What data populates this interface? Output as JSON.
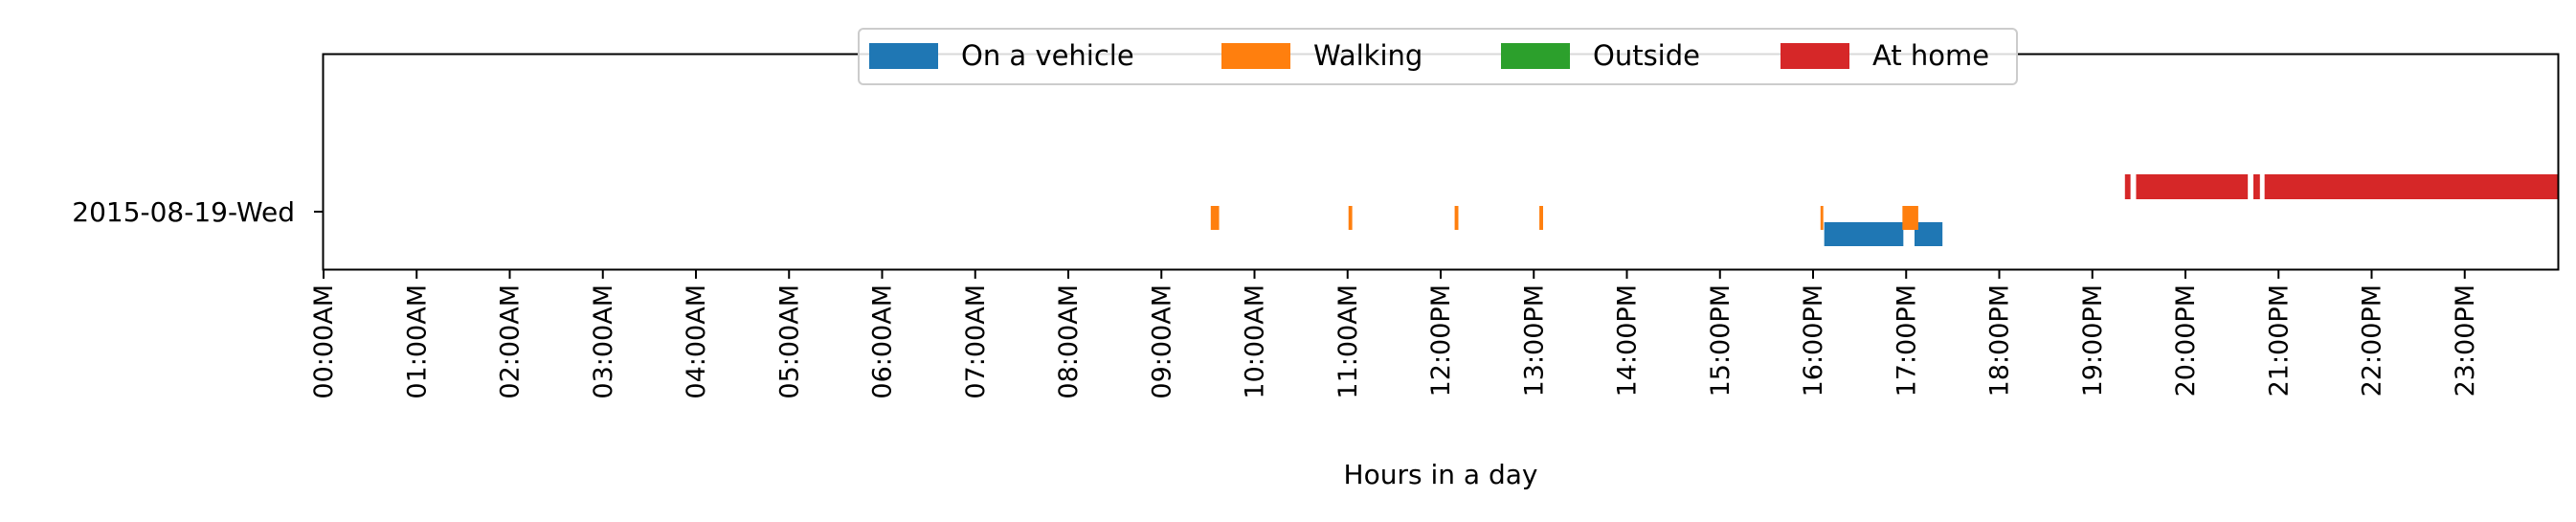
{
  "chart_data": {
    "type": "timeline",
    "xlabel": "Hours in a day",
    "xlim": [
      0,
      24
    ],
    "x_ticks": [
      {
        "value": 0,
        "label": "00:00AM"
      },
      {
        "value": 1,
        "label": "01:00AM"
      },
      {
        "value": 2,
        "label": "02:00AM"
      },
      {
        "value": 3,
        "label": "03:00AM"
      },
      {
        "value": 4,
        "label": "04:00AM"
      },
      {
        "value": 5,
        "label": "05:00AM"
      },
      {
        "value": 6,
        "label": "06:00AM"
      },
      {
        "value": 7,
        "label": "07:00AM"
      },
      {
        "value": 8,
        "label": "08:00AM"
      },
      {
        "value": 9,
        "label": "09:00AM"
      },
      {
        "value": 10,
        "label": "10:00AM"
      },
      {
        "value": 11,
        "label": "11:00AM"
      },
      {
        "value": 12,
        "label": "12:00PM"
      },
      {
        "value": 13,
        "label": "13:00PM"
      },
      {
        "value": 14,
        "label": "14:00PM"
      },
      {
        "value": 15,
        "label": "15:00PM"
      },
      {
        "value": 16,
        "label": "16:00PM"
      },
      {
        "value": 17,
        "label": "17:00PM"
      },
      {
        "value": 18,
        "label": "18:00PM"
      },
      {
        "value": 19,
        "label": "19:00PM"
      },
      {
        "value": 20,
        "label": "20:00PM"
      },
      {
        "value": 21,
        "label": "21:00PM"
      },
      {
        "value": 22,
        "label": "22:00PM"
      },
      {
        "value": 23,
        "label": "23:00PM"
      }
    ],
    "y_categories": [
      "2015-08-19-Wed"
    ],
    "legend_position": "top-center",
    "grid": false,
    "series": [
      {
        "name": "On a vehicle",
        "color": "#1f77b4",
        "lane": 0,
        "segments": [
          [
            16.12,
            16.97
          ],
          [
            17.09,
            17.39
          ]
        ]
      },
      {
        "name": "Walking",
        "color": "#ff7f0e",
        "lane": 1,
        "segments": [
          [
            9.53,
            9.62
          ],
          [
            11.01,
            11.05
          ],
          [
            12.15,
            12.19
          ],
          [
            13.06,
            13.1
          ],
          [
            16.08,
            16.11
          ],
          [
            16.96,
            17.13
          ]
        ]
      },
      {
        "name": "Outside",
        "color": "#2ca02c",
        "lane": 2,
        "segments": []
      },
      {
        "name": "At home",
        "color": "#d62728",
        "lane": 3,
        "segments": [
          [
            19.35,
            19.41
          ],
          [
            19.47,
            20.67
          ],
          [
            20.73,
            20.8
          ],
          [
            20.85,
            24.0
          ]
        ]
      }
    ]
  }
}
